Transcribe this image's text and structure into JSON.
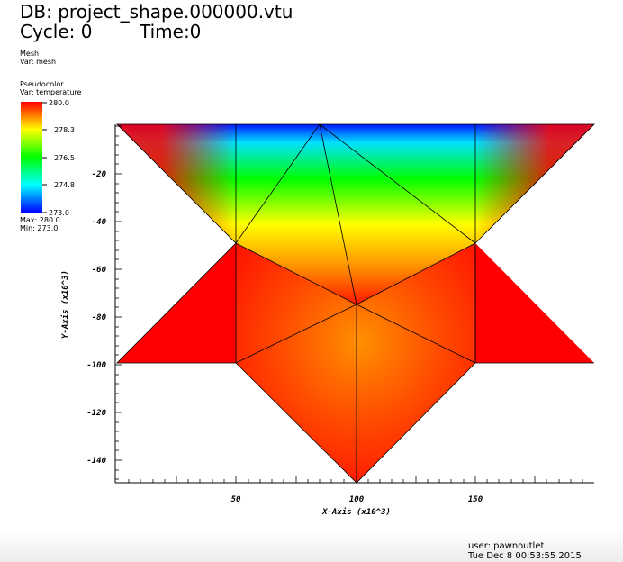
{
  "header": {
    "db_label": "DB: project_shape.000000.vtu",
    "cycle_label": "Cycle: 0",
    "time_label": "Time:0"
  },
  "legend": {
    "mesh_title": "Mesh",
    "mesh_var": "Var: mesh",
    "pc_title": "Pseudocolor",
    "pc_var": "Var: temperature",
    "ticks": [
      "280.0",
      "278.3",
      "276.5",
      "274.8",
      "273.0"
    ],
    "max_label": "Max:  280.0",
    "min_label": "Min:  273.0"
  },
  "axes": {
    "x_label": "X-Axis (x10^3)",
    "y_label": "Y-Axis (x10^3)",
    "x_ticks": [
      "50",
      "100",
      "150"
    ],
    "y_ticks": [
      "-20",
      "-40",
      "-60",
      "-80",
      "-100",
      "-120",
      "-140"
    ]
  },
  "footer": {
    "user_label": "user: pawnoutlet",
    "date_label": "Tue Dec  8 00:53:55 2015"
  },
  "colors": {
    "hot": "#ff0000",
    "cold": "#0000ff",
    "mesh_line": "#000000"
  }
}
